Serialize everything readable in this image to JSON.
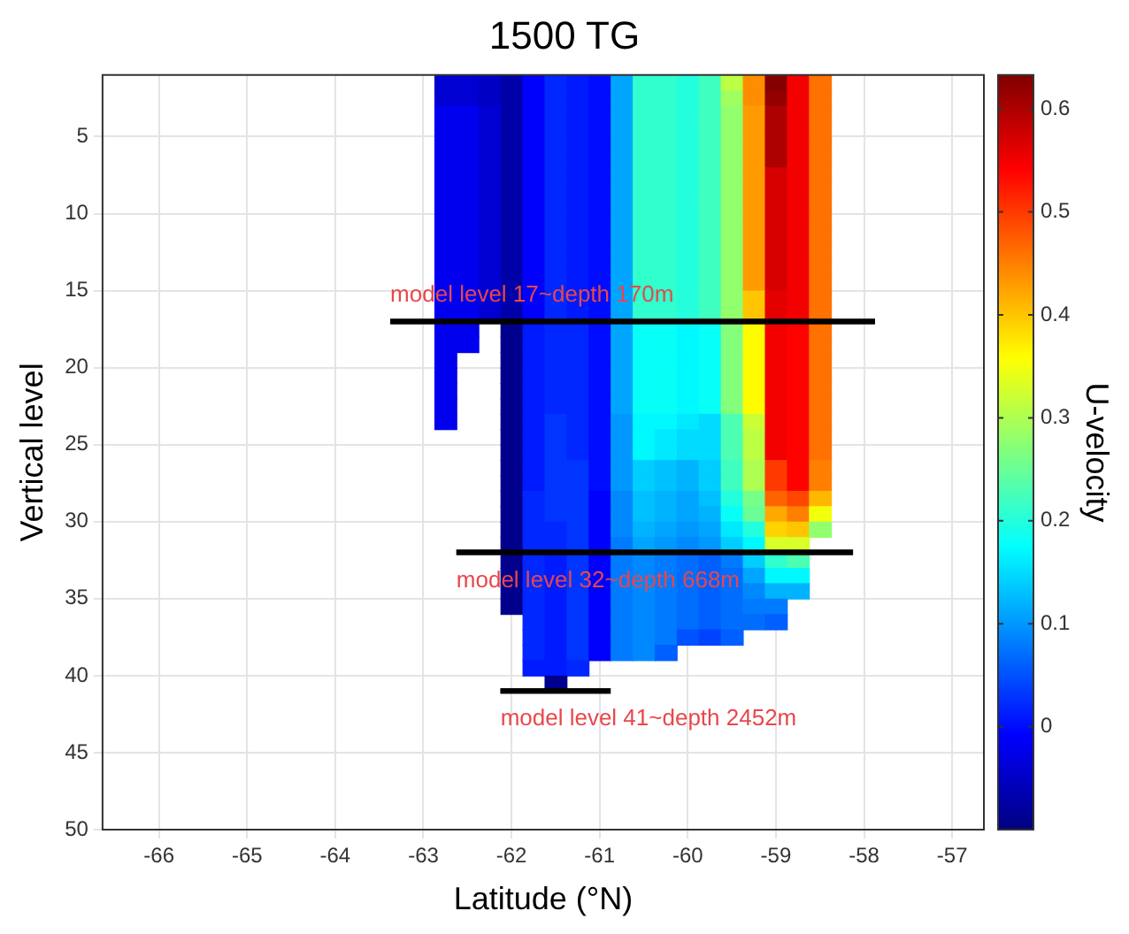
{
  "chart_data": {
    "type": "heatmap",
    "title": "1500 TG",
    "xlabel": "Latitude (°N)",
    "ylabel": "Vertical level",
    "clabel": "U-velocity",
    "x": [
      -62.75,
      -62.5,
      -62.25,
      -62,
      -61.75,
      -61.5,
      -61.25,
      -61,
      -60.75,
      -60.5,
      -60.25,
      -60,
      -59.75,
      -59.5,
      -59.25,
      -59,
      -58.75,
      -58.5
    ],
    "y": [
      1.5,
      2.5,
      3.5,
      4.5,
      5.5,
      6.5,
      7.5,
      8.5,
      9.5,
      10.5,
      11.5,
      12.5,
      13.5,
      14.5,
      15.5,
      16.5,
      17.5,
      18.5,
      19.5,
      20.5,
      21.5,
      22.5,
      23.5,
      24.5,
      25.5,
      26.5,
      27.5,
      28.5,
      29.5,
      30.5,
      31.5,
      32.5,
      33.5,
      34.5,
      35.5,
      36.5,
      37.5,
      38.5,
      39.5,
      40.5
    ],
    "cells": [
      [
        -0.04,
        -0.04,
        -0.05,
        -0.07,
        -0.01,
        0.02,
        0.01,
        0.0,
        0.11,
        0.21,
        0.21,
        0.2,
        0.22,
        0.31,
        0.44,
        0.63,
        0.55,
        0.46
      ],
      [
        -0.04,
        -0.04,
        -0.05,
        -0.07,
        -0.01,
        0.02,
        0.01,
        0.0,
        0.11,
        0.21,
        0.21,
        0.2,
        0.22,
        0.29,
        0.44,
        0.62,
        0.55,
        0.46
      ],
      [
        -0.02,
        -0.02,
        -0.04,
        -0.07,
        -0.01,
        0.02,
        0.01,
        0.0,
        0.11,
        0.21,
        0.21,
        0.2,
        0.22,
        0.28,
        0.43,
        0.6,
        0.55,
        0.46
      ],
      [
        -0.02,
        -0.02,
        -0.04,
        -0.07,
        -0.01,
        0.02,
        0.01,
        0.0,
        0.11,
        0.21,
        0.21,
        0.2,
        0.22,
        0.28,
        0.43,
        0.6,
        0.55,
        0.46
      ],
      [
        -0.02,
        -0.02,
        -0.04,
        -0.07,
        -0.01,
        0.02,
        0.01,
        0.0,
        0.11,
        0.21,
        0.21,
        0.2,
        0.22,
        0.28,
        0.43,
        0.6,
        0.55,
        0.46
      ],
      [
        -0.02,
        -0.02,
        -0.04,
        -0.07,
        -0.01,
        0.02,
        0.01,
        0.0,
        0.11,
        0.21,
        0.21,
        0.2,
        0.22,
        0.28,
        0.43,
        0.6,
        0.55,
        0.46
      ],
      [
        -0.02,
        -0.02,
        -0.04,
        -0.07,
        -0.01,
        0.02,
        0.01,
        0.0,
        0.11,
        0.21,
        0.21,
        0.2,
        0.22,
        0.28,
        0.43,
        0.57,
        0.55,
        0.46
      ],
      [
        -0.02,
        -0.02,
        -0.04,
        -0.07,
        -0.01,
        0.02,
        0.01,
        0.0,
        0.11,
        0.21,
        0.21,
        0.2,
        0.22,
        0.28,
        0.43,
        0.57,
        0.55,
        0.46
      ],
      [
        -0.02,
        -0.02,
        -0.04,
        -0.07,
        -0.01,
        0.02,
        0.01,
        0.0,
        0.11,
        0.21,
        0.21,
        0.2,
        0.22,
        0.28,
        0.43,
        0.57,
        0.55,
        0.46
      ],
      [
        -0.02,
        -0.02,
        -0.04,
        -0.07,
        -0.01,
        0.02,
        0.01,
        0.0,
        0.11,
        0.21,
        0.21,
        0.2,
        0.22,
        0.28,
        0.43,
        0.57,
        0.55,
        0.46
      ],
      [
        -0.02,
        -0.02,
        -0.04,
        -0.07,
        -0.01,
        0.02,
        0.01,
        0.0,
        0.11,
        0.21,
        0.21,
        0.2,
        0.22,
        0.28,
        0.43,
        0.57,
        0.55,
        0.46
      ],
      [
        -0.02,
        -0.02,
        -0.04,
        -0.07,
        -0.01,
        0.02,
        0.01,
        0.0,
        0.11,
        0.21,
        0.21,
        0.2,
        0.22,
        0.28,
        0.43,
        0.57,
        0.55,
        0.46
      ],
      [
        -0.02,
        -0.02,
        -0.04,
        -0.07,
        -0.01,
        0.02,
        0.01,
        0.0,
        0.11,
        0.21,
        0.21,
        0.2,
        0.22,
        0.28,
        0.43,
        0.57,
        0.55,
        0.46
      ],
      [
        -0.02,
        -0.02,
        -0.04,
        -0.07,
        -0.01,
        0.02,
        0.01,
        0.0,
        0.11,
        0.21,
        0.21,
        0.2,
        0.22,
        0.28,
        0.43,
        0.57,
        0.55,
        0.46
      ],
      [
        -0.02,
        -0.02,
        -0.04,
        -0.07,
        -0.01,
        0.02,
        0.01,
        0.0,
        0.11,
        0.21,
        0.21,
        0.2,
        0.22,
        0.28,
        0.4,
        0.56,
        0.55,
        0.46
      ],
      [
        -0.02,
        -0.02,
        -0.04,
        -0.07,
        -0.01,
        0.02,
        0.01,
        0.0,
        0.11,
        0.21,
        0.21,
        0.2,
        0.22,
        0.28,
        0.4,
        0.56,
        0.55,
        0.46
      ],
      [
        -0.02,
        -0.02,
        null,
        -0.09,
        0.01,
        0.02,
        0.02,
        0.0,
        0.11,
        0.18,
        0.18,
        0.17,
        0.18,
        0.27,
        0.36,
        0.55,
        0.54,
        0.46
      ],
      [
        -0.02,
        -0.02,
        null,
        -0.09,
        0.01,
        0.02,
        0.02,
        0.0,
        0.11,
        0.18,
        0.18,
        0.17,
        0.18,
        0.27,
        0.36,
        0.55,
        0.54,
        0.46
      ],
      [
        -0.02,
        null,
        null,
        -0.09,
        0.01,
        0.02,
        0.02,
        0.0,
        0.11,
        0.18,
        0.18,
        0.17,
        0.18,
        0.27,
        0.36,
        0.55,
        0.54,
        0.46
      ],
      [
        -0.02,
        null,
        null,
        -0.09,
        0.01,
        0.02,
        0.02,
        0.0,
        0.11,
        0.18,
        0.18,
        0.17,
        0.18,
        0.27,
        0.36,
        0.55,
        0.54,
        0.46
      ],
      [
        -0.02,
        null,
        null,
        -0.09,
        0.01,
        0.02,
        0.02,
        0.0,
        0.11,
        0.18,
        0.18,
        0.17,
        0.18,
        0.27,
        0.36,
        0.55,
        0.54,
        0.46
      ],
      [
        -0.02,
        null,
        null,
        -0.09,
        0.01,
        0.02,
        0.02,
        0.0,
        0.11,
        0.18,
        0.18,
        0.17,
        0.18,
        0.27,
        0.36,
        0.55,
        0.54,
        0.46
      ],
      [
        -0.02,
        null,
        null,
        -0.09,
        0.01,
        0.03,
        0.02,
        0.0,
        0.1,
        0.17,
        0.17,
        0.16,
        0.15,
        0.23,
        0.32,
        0.55,
        0.54,
        0.46
      ],
      [
        null,
        null,
        null,
        -0.09,
        0.01,
        0.03,
        0.02,
        0.0,
        0.1,
        0.17,
        0.16,
        0.15,
        0.15,
        0.23,
        0.31,
        0.55,
        0.54,
        0.46
      ],
      [
        null,
        null,
        null,
        -0.09,
        0.01,
        0.03,
        0.02,
        0.0,
        0.1,
        0.17,
        0.16,
        0.15,
        0.15,
        0.23,
        0.31,
        0.55,
        0.54,
        0.46
      ],
      [
        null,
        null,
        null,
        -0.09,
        0.01,
        0.03,
        0.03,
        0.0,
        0.1,
        0.14,
        0.13,
        0.12,
        0.14,
        0.22,
        0.3,
        0.5,
        0.54,
        0.45
      ],
      [
        null,
        null,
        null,
        -0.09,
        0.01,
        0.03,
        0.03,
        0.0,
        0.1,
        0.14,
        0.13,
        0.12,
        0.14,
        0.22,
        0.3,
        0.5,
        0.54,
        0.45
      ],
      [
        null,
        null,
        null,
        -0.09,
        0.02,
        0.03,
        0.03,
        -0.01,
        0.09,
        0.13,
        0.12,
        0.11,
        0.13,
        0.2,
        0.26,
        0.47,
        0.49,
        0.41
      ],
      [
        null,
        null,
        null,
        -0.09,
        0.02,
        0.03,
        0.03,
        -0.01,
        0.09,
        0.13,
        0.12,
        0.11,
        0.12,
        0.18,
        0.25,
        0.42,
        0.45,
        0.35
      ],
      [
        null,
        null,
        null,
        -0.09,
        0.02,
        0.02,
        0.03,
        -0.01,
        0.09,
        0.12,
        0.11,
        0.1,
        0.11,
        0.16,
        0.2,
        0.39,
        0.4,
        0.28
      ],
      [
        null,
        null,
        null,
        -0.09,
        0.02,
        0.02,
        0.03,
        -0.01,
        0.08,
        0.11,
        0.1,
        0.09,
        0.1,
        0.14,
        0.17,
        0.33,
        0.33,
        null
      ],
      [
        null,
        null,
        null,
        -0.09,
        0.02,
        0.01,
        0.03,
        -0.01,
        0.08,
        0.09,
        0.08,
        0.07,
        0.06,
        0.08,
        0.14,
        0.21,
        0.23,
        null
      ],
      [
        null,
        null,
        null,
        -0.09,
        0.02,
        0.01,
        0.03,
        -0.01,
        0.08,
        0.09,
        0.08,
        0.07,
        0.06,
        0.07,
        0.11,
        0.17,
        0.17,
        null
      ],
      [
        null,
        null,
        null,
        -0.09,
        0.02,
        0.01,
        0.03,
        -0.01,
        0.08,
        0.09,
        0.08,
        0.07,
        0.06,
        0.07,
        0.09,
        0.12,
        0.12,
        null
      ],
      [
        null,
        null,
        null,
        -0.09,
        0.02,
        0.01,
        0.03,
        -0.01,
        0.08,
        0.09,
        0.08,
        0.07,
        0.06,
        0.07,
        0.08,
        0.08,
        null,
        null
      ],
      [
        null,
        null,
        null,
        null,
        0.02,
        0.01,
        0.03,
        -0.01,
        0.08,
        0.09,
        0.08,
        0.07,
        0.06,
        0.07,
        0.07,
        0.06,
        null,
        null
      ],
      [
        null,
        null,
        null,
        null,
        0.02,
        0.01,
        0.03,
        -0.01,
        0.08,
        0.09,
        0.08,
        0.05,
        0.04,
        0.06,
        null,
        null,
        null,
        null
      ],
      [
        null,
        null,
        null,
        null,
        0.02,
        0.01,
        0.03,
        -0.01,
        0.08,
        0.09,
        0.06,
        null,
        null,
        null,
        null,
        null,
        null,
        null
      ],
      [
        null,
        null,
        null,
        null,
        0.01,
        0.01,
        0.02,
        null,
        null,
        null,
        null,
        null,
        null,
        null,
        null,
        null,
        null,
        null
      ],
      [
        null,
        null,
        null,
        null,
        null,
        -0.09,
        null,
        null,
        null,
        null,
        null,
        null,
        null,
        null,
        null,
        null,
        null,
        null
      ]
    ],
    "clim": [
      -0.1,
      0.633
    ],
    "cticks": [
      0,
      0.1,
      0.2,
      0.3,
      0.4,
      0.5,
      0.6
    ],
    "xlim": [
      -66.64,
      -56.64
    ],
    "xticks": [
      -66,
      -65,
      -64,
      -63,
      -62,
      -61,
      -60,
      -59,
      -58,
      -57
    ],
    "ylim": [
      50,
      1
    ],
    "yticks": [
      5,
      10,
      15,
      20,
      25,
      30,
      35,
      40,
      45,
      50
    ],
    "grid": true,
    "ref_lines": [
      {
        "axis": "y",
        "value": 17,
        "color": "#000000",
        "label": "model level 17~depth 170m"
      },
      {
        "axis": "y",
        "value": 32,
        "color": "#000000",
        "label": "model level 32~depth 668m"
      },
      {
        "axis": "y",
        "value": 41,
        "color": "#000000",
        "label": "model level 41~depth 2452m"
      }
    ]
  }
}
